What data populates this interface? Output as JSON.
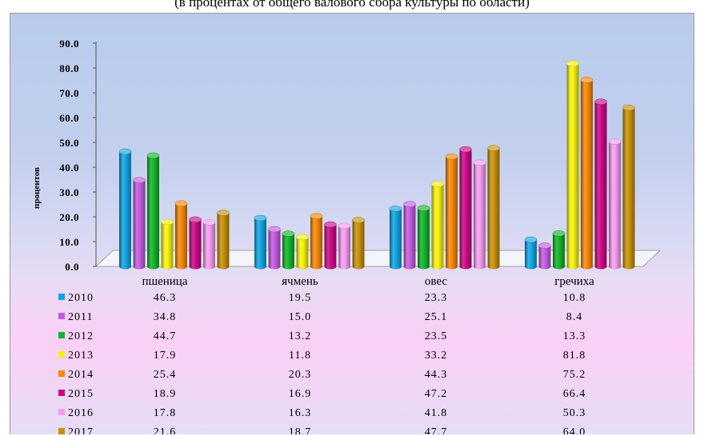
{
  "header": {
    "caption": "(в процентах от общего валового сбора культуры по области)"
  },
  "chart_data": {
    "type": "bar",
    "title": "",
    "xlabel": "",
    "ylabel": "процентов",
    "ylim": [
      0,
      90
    ],
    "yticks": [
      "0.0",
      "10.0",
      "20.0",
      "30.0",
      "40.0",
      "50.0",
      "60.0",
      "70.0",
      "80.0",
      "90.0"
    ],
    "categories": [
      "пшеница",
      "ячмень",
      "овес",
      "гречиха"
    ],
    "series": [
      {
        "name": "2010",
        "color": "#13a4e2",
        "values": [
          46.3,
          19.5,
          23.3,
          10.8
        ]
      },
      {
        "name": "2011",
        "color": "#c45be0",
        "values": [
          34.8,
          15.0,
          25.1,
          8.4
        ]
      },
      {
        "name": "2012",
        "color": "#12b52a",
        "values": [
          44.7,
          13.2,
          23.5,
          13.3
        ]
      },
      {
        "name": "2013",
        "color": "#f6f20e",
        "values": [
          17.9,
          11.8,
          33.2,
          81.8
        ]
      },
      {
        "name": "2014",
        "color": "#f68708",
        "values": [
          25.4,
          20.3,
          44.3,
          75.2
        ]
      },
      {
        "name": "2015",
        "color": "#cc0a88",
        "values": [
          18.9,
          16.9,
          47.2,
          66.4
        ]
      },
      {
        "name": "2016",
        "color": "#f79cf0",
        "values": [
          17.8,
          16.3,
          41.8,
          50.3
        ]
      },
      {
        "name": "2017",
        "color": "#c6900a",
        "values": [
          21.6,
          18.7,
          47.7,
          64.0
        ]
      }
    ],
    "table": [
      [
        "46.3",
        "19.5",
        "23.3",
        "10.8"
      ],
      [
        "34.8",
        "15.0",
        "25.1",
        "8.4"
      ],
      [
        "44.7",
        "13.2",
        "23.5",
        "13.3"
      ],
      [
        "17.9",
        "11.8",
        "33.2",
        "81.8"
      ],
      [
        "25.4",
        "20.3",
        "44.3",
        "75.2"
      ],
      [
        "18.9",
        "16.9",
        "47.2",
        "66.4"
      ],
      [
        "17.8",
        "16.3",
        "41.8",
        "50.3"
      ],
      [
        "21.6",
        "18.7",
        "47.7",
        "64.0"
      ]
    ],
    "grid": false,
    "legend": "data-table below chart"
  }
}
